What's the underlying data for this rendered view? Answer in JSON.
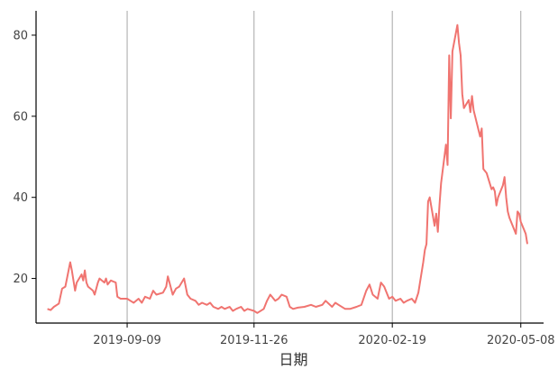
{
  "chart_data": {
    "type": "line",
    "title": "",
    "xlabel": "日期",
    "ylabel": "",
    "x_ticks": [
      "2019-09-09",
      "2019-11-26",
      "2020-02-19",
      "2020-05-08"
    ],
    "y_ticks": [
      20,
      40,
      60,
      80
    ],
    "xlim": [
      "2019-07-15",
      "2020-05-22"
    ],
    "ylim": [
      9,
      86
    ],
    "grid": "vertical lines at x ticks",
    "legend": "none",
    "series": [
      {
        "color": "#F07470",
        "points": [
          [
            "2019-07-22",
            12.5
          ],
          [
            "2019-07-24",
            12.2
          ],
          [
            "2019-07-26",
            13.0
          ],
          [
            "2019-07-29",
            13.8
          ],
          [
            "2019-07-31",
            17.5
          ],
          [
            "2019-08-02",
            18.0
          ],
          [
            "2019-08-05",
            24.0
          ],
          [
            "2019-08-06",
            22.0
          ],
          [
            "2019-08-08",
            17.0
          ],
          [
            "2019-08-09",
            19.0
          ],
          [
            "2019-08-12",
            21.0
          ],
          [
            "2019-08-13",
            19.5
          ],
          [
            "2019-08-14",
            22.0
          ],
          [
            "2019-08-15",
            19.0
          ],
          [
            "2019-08-16",
            18.0
          ],
          [
            "2019-08-19",
            17.0
          ],
          [
            "2019-08-20",
            16.0
          ],
          [
            "2019-08-22",
            19.0
          ],
          [
            "2019-08-23",
            20.0
          ],
          [
            "2019-08-26",
            19.0
          ],
          [
            "2019-08-27",
            20.0
          ],
          [
            "2019-08-28",
            18.5
          ],
          [
            "2019-08-30",
            19.5
          ],
          [
            "2019-09-02",
            19.0
          ],
          [
            "2019-09-03",
            15.5
          ],
          [
            "2019-09-05",
            15.0
          ],
          [
            "2019-09-09",
            15.0
          ],
          [
            "2019-09-11",
            14.5
          ],
          [
            "2019-09-13",
            14.0
          ],
          [
            "2019-09-16",
            15.0
          ],
          [
            "2019-09-18",
            14.0
          ],
          [
            "2019-09-20",
            15.5
          ],
          [
            "2019-09-23",
            15.0
          ],
          [
            "2019-09-25",
            17.0
          ],
          [
            "2019-09-27",
            16.0
          ],
          [
            "2019-10-01",
            16.5
          ],
          [
            "2019-10-03",
            18.0
          ],
          [
            "2019-10-04",
            20.5
          ],
          [
            "2019-10-07",
            16.0
          ],
          [
            "2019-10-09",
            17.5
          ],
          [
            "2019-10-11",
            18.0
          ],
          [
            "2019-10-14",
            20.0
          ],
          [
            "2019-10-16",
            16.0
          ],
          [
            "2019-10-18",
            15.0
          ],
          [
            "2019-10-21",
            14.5
          ],
          [
            "2019-10-23",
            13.5
          ],
          [
            "2019-10-25",
            14.0
          ],
          [
            "2019-10-28",
            13.5
          ],
          [
            "2019-10-30",
            14.0
          ],
          [
            "2019-11-01",
            13.0
          ],
          [
            "2019-11-04",
            12.5
          ],
          [
            "2019-11-06",
            13.0
          ],
          [
            "2019-11-08",
            12.5
          ],
          [
            "2019-11-11",
            13.0
          ],
          [
            "2019-11-13",
            12.0
          ],
          [
            "2019-11-15",
            12.5
          ],
          [
            "2019-11-18",
            13.0
          ],
          [
            "2019-11-20",
            12.0
          ],
          [
            "2019-11-22",
            12.5
          ],
          [
            "2019-11-26",
            12.0
          ],
          [
            "2019-11-28",
            11.5
          ],
          [
            "2019-12-02",
            12.5
          ],
          [
            "2019-12-04",
            14.5
          ],
          [
            "2019-12-06",
            16.0
          ],
          [
            "2019-12-09",
            14.5
          ],
          [
            "2019-12-11",
            15.0
          ],
          [
            "2019-12-13",
            16.0
          ],
          [
            "2019-12-16",
            15.5
          ],
          [
            "2019-12-18",
            13.0
          ],
          [
            "2019-12-20",
            12.5
          ],
          [
            "2019-12-23",
            12.8
          ],
          [
            "2019-12-27",
            13.0
          ],
          [
            "2019-12-31",
            13.5
          ],
          [
            "2020-01-03",
            13.0
          ],
          [
            "2020-01-07",
            13.5
          ],
          [
            "2020-01-09",
            14.5
          ],
          [
            "2020-01-13",
            13.0
          ],
          [
            "2020-01-15",
            14.0
          ],
          [
            "2020-01-17",
            13.5
          ],
          [
            "2020-01-21",
            12.5
          ],
          [
            "2020-01-24",
            12.5
          ],
          [
            "2020-01-28",
            13.0
          ],
          [
            "2020-01-31",
            13.5
          ],
          [
            "2020-02-03",
            17.0
          ],
          [
            "2020-02-05",
            18.5
          ],
          [
            "2020-02-07",
            16.0
          ],
          [
            "2020-02-10",
            15.0
          ],
          [
            "2020-02-12",
            19.0
          ],
          [
            "2020-02-14",
            18.0
          ],
          [
            "2020-02-17",
            15.0
          ],
          [
            "2020-02-19",
            15.5
          ],
          [
            "2020-02-21",
            14.5
          ],
          [
            "2020-02-24",
            15.0
          ],
          [
            "2020-02-26",
            14.0
          ],
          [
            "2020-02-28",
            14.5
          ],
          [
            "2020-03-02",
            15.0
          ],
          [
            "2020-03-04",
            14.0
          ],
          [
            "2020-03-06",
            16.5
          ],
          [
            "2020-03-09",
            24.0
          ],
          [
            "2020-03-10",
            27.0
          ],
          [
            "2020-03-11",
            28.5
          ],
          [
            "2020-03-12",
            39.0
          ],
          [
            "2020-03-13",
            40.0
          ],
          [
            "2020-03-16",
            33.0
          ],
          [
            "2020-03-17",
            36.0
          ],
          [
            "2020-03-18",
            31.5
          ],
          [
            "2020-03-19",
            38.0
          ],
          [
            "2020-03-20",
            43.5
          ],
          [
            "2020-03-23",
            53.0
          ],
          [
            "2020-03-24",
            48.0
          ],
          [
            "2020-03-25",
            75.0
          ],
          [
            "2020-03-26",
            59.5
          ],
          [
            "2020-03-27",
            76.0
          ],
          [
            "2020-03-30",
            82.5
          ],
          [
            "2020-03-31",
            78.0
          ],
          [
            "2020-04-01",
            75.0
          ],
          [
            "2020-04-02",
            65.5
          ],
          [
            "2020-04-03",
            62.0
          ],
          [
            "2020-04-06",
            64.0
          ],
          [
            "2020-04-07",
            61.0
          ],
          [
            "2020-04-08",
            65.0
          ],
          [
            "2020-04-09",
            61.5
          ],
          [
            "2020-04-13",
            55.0
          ],
          [
            "2020-04-14",
            57.0
          ],
          [
            "2020-04-15",
            47.0
          ],
          [
            "2020-04-16",
            46.5
          ],
          [
            "2020-04-17",
            46.0
          ],
          [
            "2020-04-20",
            42.0
          ],
          [
            "2020-04-21",
            42.5
          ],
          [
            "2020-04-22",
            41.5
          ],
          [
            "2020-04-23",
            38.0
          ],
          [
            "2020-04-24",
            40.0
          ],
          [
            "2020-04-27",
            43.0
          ],
          [
            "2020-04-28",
            45.0
          ],
          [
            "2020-04-29",
            40.0
          ],
          [
            "2020-04-30",
            36.5
          ],
          [
            "2020-05-01",
            35.0
          ],
          [
            "2020-05-04",
            32.0
          ],
          [
            "2020-05-05",
            31.0
          ],
          [
            "2020-05-06",
            36.5
          ],
          [
            "2020-05-07",
            36.0
          ],
          [
            "2020-05-08",
            34.0
          ],
          [
            "2020-05-11",
            31.0
          ],
          [
            "2020-05-12",
            28.5
          ]
        ]
      }
    ]
  }
}
